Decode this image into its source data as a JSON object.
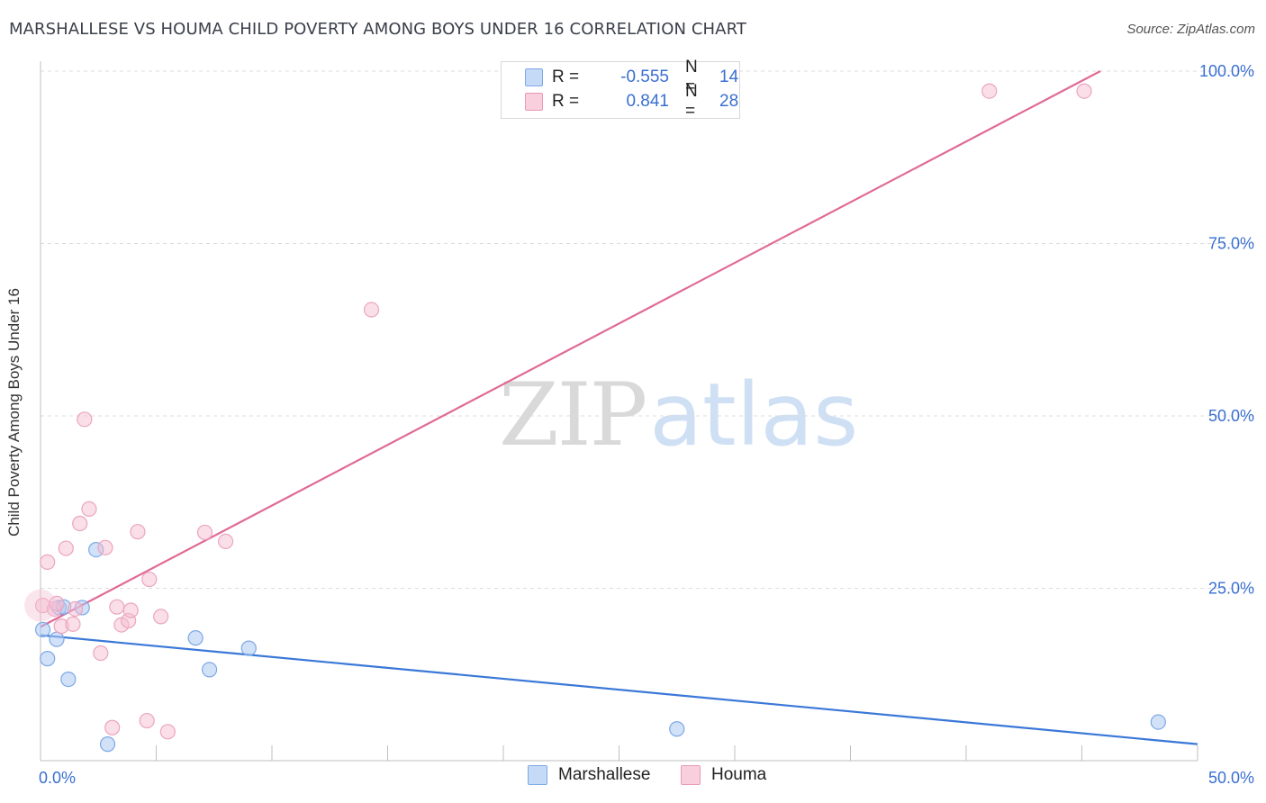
{
  "title": "MARSHALLESE VS HOUMA CHILD POVERTY AMONG BOYS UNDER 16 CORRELATION CHART",
  "source": "Source: ZipAtlas.com",
  "watermark": {
    "part1": "ZIP",
    "part2": "atlas"
  },
  "legend_top": [
    {
      "r_label": "R =",
      "r_value": "-0.555",
      "n_label": "N =",
      "n_value": "14"
    },
    {
      "r_label": "R =",
      "r_value": "0.841",
      "n_label": "N =",
      "n_value": "28"
    }
  ],
  "legend_bottom": [
    "Marshallese",
    "Houma"
  ],
  "chart_data": {
    "type": "scatter",
    "title": "MARSHALLESE VS HOUMA CHILD POVERTY AMONG BOYS UNDER 16 CORRELATION CHART",
    "xlabel": "",
    "ylabel": "Child Poverty Among Boys Under 16",
    "xlim": [
      0,
      50
    ],
    "ylim": [
      0,
      100
    ],
    "x_tick_labels": [
      "0.0%",
      "50.0%"
    ],
    "y_tick_labels": [
      "25.0%",
      "50.0%",
      "75.0%",
      "100.0%"
    ],
    "y_ticks": [
      25,
      50,
      75,
      100
    ],
    "grid": true,
    "legend_position": "bottom",
    "colors": {
      "Marshallese": "#3a78d8",
      "Houma": "#e06a96"
    },
    "series": [
      {
        "name": "Marshallese",
        "color": "#3a78d8",
        "points": [
          [
            0.1,
            19.0
          ],
          [
            0.3,
            14.8
          ],
          [
            0.7,
            17.6
          ],
          [
            0.8,
            22.2
          ],
          [
            1.0,
            22.3
          ],
          [
            1.2,
            11.8
          ],
          [
            1.8,
            22.2
          ],
          [
            2.4,
            30.6
          ],
          [
            2.9,
            2.4
          ],
          [
            6.7,
            17.8
          ],
          [
            7.3,
            13.2
          ],
          [
            9.0,
            16.3
          ],
          [
            27.5,
            4.6
          ],
          [
            48.3,
            5.6
          ]
        ],
        "trend": {
          "x": [
            0,
            50
          ],
          "y": [
            18.2,
            2.4
          ]
        }
      },
      {
        "name": "Houma",
        "color": "#e06a96",
        "points": [
          [
            0.1,
            22.5
          ],
          [
            0.3,
            28.8
          ],
          [
            0.6,
            22.0
          ],
          [
            0.7,
            22.8
          ],
          [
            0.9,
            19.5
          ],
          [
            1.1,
            30.8
          ],
          [
            1.4,
            19.8
          ],
          [
            1.5,
            22.0
          ],
          [
            1.7,
            34.4
          ],
          [
            1.9,
            49.5
          ],
          [
            2.1,
            36.5
          ],
          [
            2.6,
            15.6
          ],
          [
            2.8,
            30.9
          ],
          [
            3.1,
            4.8
          ],
          [
            3.3,
            22.3
          ],
          [
            3.5,
            19.7
          ],
          [
            3.8,
            20.3
          ],
          [
            3.9,
            21.8
          ],
          [
            4.2,
            33.2
          ],
          [
            4.6,
            5.8
          ],
          [
            4.7,
            26.3
          ],
          [
            5.2,
            20.9
          ],
          [
            5.5,
            4.2
          ],
          [
            7.1,
            33.1
          ],
          [
            8.0,
            31.8
          ],
          [
            14.3,
            65.4
          ],
          [
            41.0,
            97.1
          ],
          [
            45.1,
            97.1
          ]
        ],
        "trend": {
          "x": [
            0,
            45.8
          ],
          "y": [
            19.4,
            100
          ]
        }
      }
    ]
  }
}
